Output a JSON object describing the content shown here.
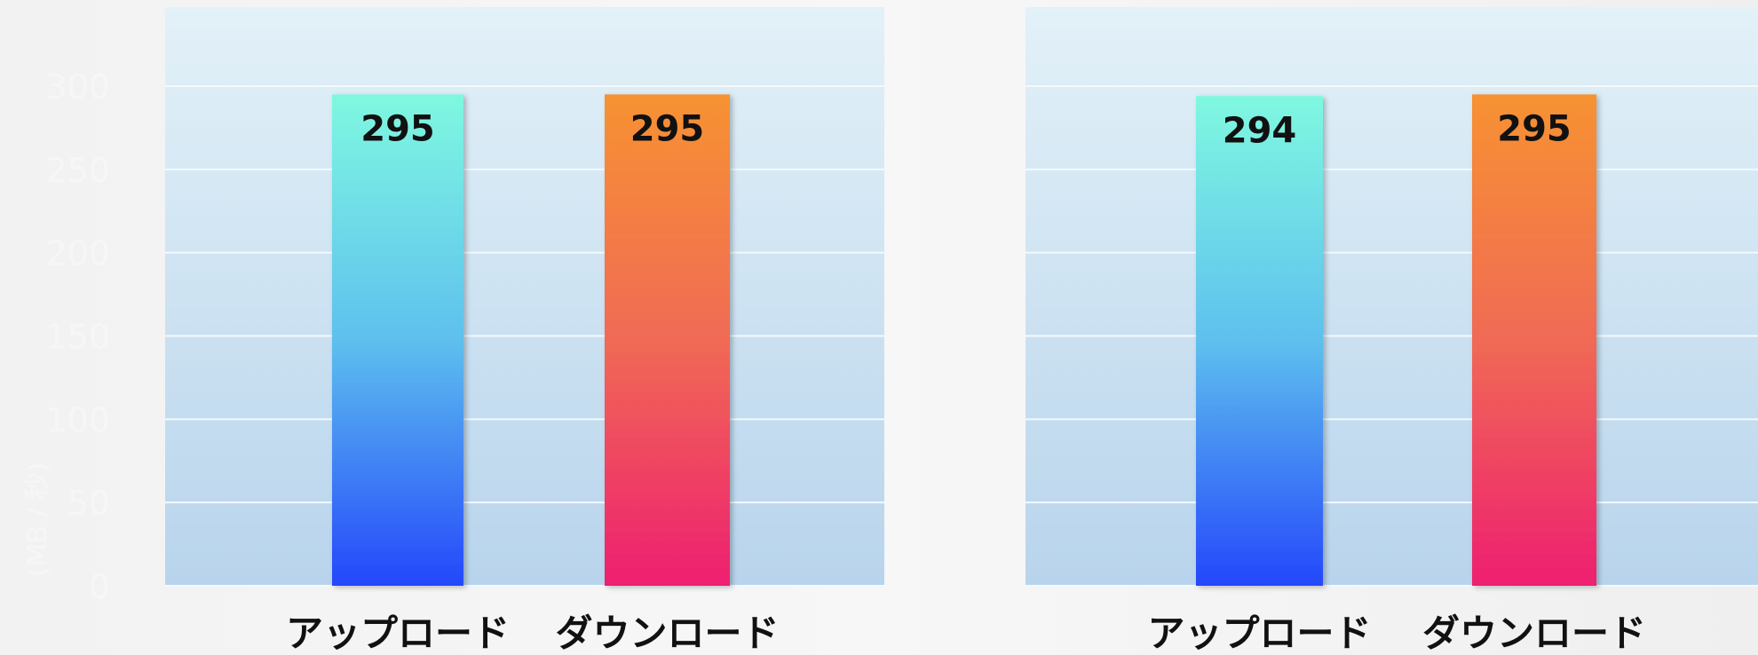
{
  "colors": {
    "upload_top": "#7ff8e0",
    "upload_mid": "#5ec0ee",
    "upload_bottom": "#2447fb",
    "download_top": "#f79232",
    "download_mid": "#f06a55",
    "download_bottom": "#ee1f70",
    "panel_top": "#e3f1f8",
    "panel_bottom": "#b8d4ec",
    "gridline": "#f4f9fc"
  },
  "axis": {
    "ticks": [
      "0",
      "50",
      "100",
      "150",
      "200",
      "250",
      "300"
    ],
    "unit_label": "(MB / 秒)"
  },
  "chart_data": [
    {
      "type": "bar",
      "categories": [
        "アップロード",
        "ダウンロード"
      ],
      "values": [
        295,
        295
      ],
      "ylim": [
        0,
        350
      ],
      "yticks": [
        0,
        50,
        100,
        150,
        200,
        250,
        300
      ],
      "grid": true
    },
    {
      "type": "bar",
      "categories": [
        "アップロード",
        "ダウンロード"
      ],
      "values": [
        294,
        295
      ],
      "ylim": [
        0,
        350
      ],
      "yticks": [
        0,
        50,
        100,
        150,
        200,
        250,
        300
      ],
      "grid": true
    }
  ]
}
